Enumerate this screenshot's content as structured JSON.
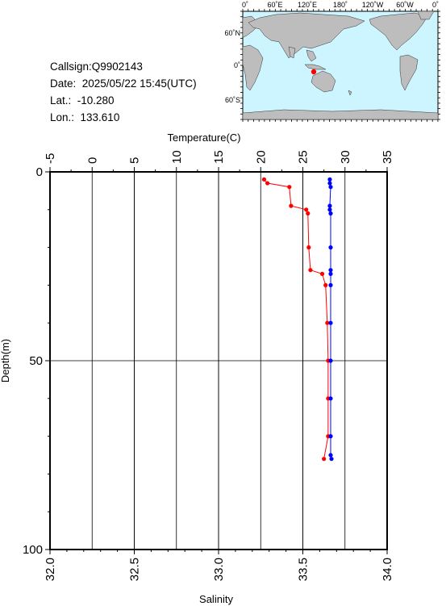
{
  "info": {
    "callsign": "Callsign:Q9902143",
    "date": "Date:  2025/05/22 15:45(UTC)",
    "lat": "Lat.:  -10.280",
    "lon": "Lon.:  133.610"
  },
  "map": {
    "top_labels": [
      "0˚",
      "60˚E",
      "120˚E",
      "180˚",
      "120˚W",
      "60˚W",
      "0˚"
    ],
    "lat_labels": [
      "60˚N",
      "0˚",
      "60˚S"
    ],
    "ocean_color": "#ccf5ff",
    "land_color": "#bdbdbd",
    "marker_color": "#ff0000"
  },
  "chart_data": {
    "type": "line",
    "top_axis_label": "Temperature(C)",
    "bottom_axis_label": "Salinity",
    "left_axis_label": "Depth(m)",
    "temperature_ticks": [
      "-5",
      "0",
      "5",
      "10",
      "15",
      "20",
      "25",
      "30",
      "35"
    ],
    "salinity_ticks": [
      "32.0",
      "32.5",
      "33.0",
      "33.5",
      "34.0"
    ],
    "depth_ticks": [
      "0",
      "50",
      "100"
    ],
    "temperature_range": [
      -5,
      35
    ],
    "salinity_range": [
      32.0,
      34.0
    ],
    "depth_range": [
      0,
      100
    ],
    "series": [
      {
        "color": "#ff0000",
        "axis": "temperature",
        "depth": [
          2,
          3,
          4,
          9,
          10,
          11,
          20,
          26,
          27,
          30,
          40,
          50,
          60,
          70,
          76
        ],
        "values": [
          20.4,
          20.8,
          23.4,
          23.6,
          25.4,
          25.6,
          25.7,
          25.9,
          27.3,
          27.7,
          27.9,
          28.0,
          28.0,
          28.0,
          27.5
        ]
      },
      {
        "color": "#0000ff",
        "axis": "salinity",
        "depth": [
          2,
          3,
          4,
          9,
          10,
          11,
          20,
          26,
          27,
          30,
          40,
          50,
          60,
          70,
          75,
          76
        ],
        "values": [
          33.66,
          33.66,
          33.665,
          33.66,
          33.66,
          33.665,
          33.665,
          33.665,
          33.665,
          33.665,
          33.665,
          33.665,
          33.665,
          33.665,
          33.665,
          33.67
        ]
      }
    ]
  }
}
